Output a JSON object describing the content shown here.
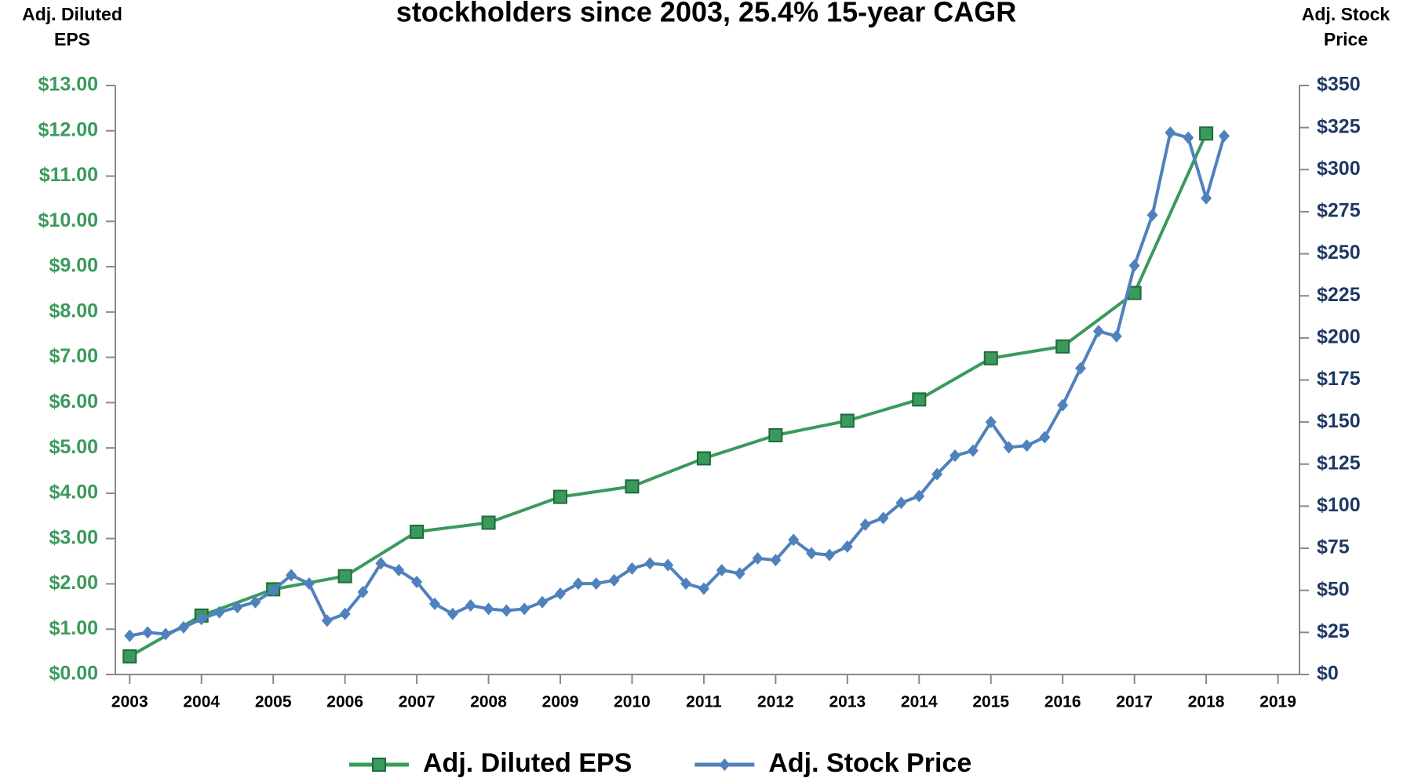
{
  "chart_data": {
    "type": "line",
    "title": "stockholders since 2003, 25.4% 15-year CAGR",
    "ylabel": "Adj. Diluted EPS",
    "y2label": "Adj. Stock Price",
    "xlim": [
      2002.8,
      2019.3
    ],
    "xticks": [
      2003,
      2004,
      2005,
      2006,
      2007,
      2008,
      2009,
      2010,
      2011,
      2012,
      2013,
      2014,
      2015,
      2016,
      2017,
      2018,
      2019
    ],
    "ylim": [
      0,
      13
    ],
    "yticks": [
      {
        "value": 0,
        "label": "$0.00"
      },
      {
        "value": 1,
        "label": "$1.00"
      },
      {
        "value": 2,
        "label": "$2.00"
      },
      {
        "value": 3,
        "label": "$3.00"
      },
      {
        "value": 4,
        "label": "$4.00"
      },
      {
        "value": 5,
        "label": "$5.00"
      },
      {
        "value": 6,
        "label": "$6.00"
      },
      {
        "value": 7,
        "label": "$7.00"
      },
      {
        "value": 8,
        "label": "$8.00"
      },
      {
        "value": 9,
        "label": "$9.00"
      },
      {
        "value": 10,
        "label": "$10.00"
      },
      {
        "value": 11,
        "label": "$11.00"
      },
      {
        "value": 12,
        "label": "$12.00"
      },
      {
        "value": 13,
        "label": "$13.00"
      }
    ],
    "y2lim": [
      0,
      350
    ],
    "y2ticks": [
      {
        "value": 0,
        "label": "$0"
      },
      {
        "value": 25,
        "label": "$25"
      },
      {
        "value": 50,
        "label": "$50"
      },
      {
        "value": 75,
        "label": "$75"
      },
      {
        "value": 100,
        "label": "$100"
      },
      {
        "value": 125,
        "label": "$125"
      },
      {
        "value": 150,
        "label": "$150"
      },
      {
        "value": 175,
        "label": "$175"
      },
      {
        "value": 200,
        "label": "$200"
      },
      {
        "value": 225,
        "label": "$225"
      },
      {
        "value": 250,
        "label": "$250"
      },
      {
        "value": 275,
        "label": "$275"
      },
      {
        "value": 300,
        "label": "$300"
      },
      {
        "value": 325,
        "label": "$325"
      },
      {
        "value": 350,
        "label": "$350"
      }
    ],
    "series": [
      {
        "name": "Adj. Diluted EPS",
        "color": "#3a9a5c",
        "marker": "square",
        "x": [
          2003,
          2004,
          2005,
          2006,
          2007,
          2008,
          2009,
          2010,
          2011,
          2012,
          2013,
          2014,
          2015,
          2016,
          2017,
          2018
        ],
        "values": [
          0.4,
          1.3,
          1.88,
          2.17,
          3.15,
          3.35,
          3.92,
          4.15,
          4.77,
          5.28,
          5.6,
          6.07,
          6.98,
          7.24,
          8.42,
          11.94
        ]
      },
      {
        "name": "Adj. Stock Price",
        "color": "#4f81bd",
        "marker": "diamond",
        "axis": "y2",
        "x": [
          2003,
          2003.25,
          2003.5,
          2003.75,
          2004,
          2004.25,
          2004.5,
          2004.75,
          2005,
          2005.25,
          2005.5,
          2005.75,
          2006,
          2006.25,
          2006.5,
          2006.75,
          2007,
          2007.25,
          2007.5,
          2007.75,
          2008,
          2008.25,
          2008.5,
          2008.75,
          2009,
          2009.25,
          2009.5,
          2009.75,
          2010,
          2010.25,
          2010.5,
          2010.75,
          2011,
          2011.25,
          2011.5,
          2011.75,
          2012,
          2012.25,
          2012.5,
          2012.75,
          2013,
          2013.25,
          2013.5,
          2013.75,
          2014,
          2014.25,
          2014.5,
          2014.75,
          2015,
          2015.25,
          2015.5,
          2015.75,
          2016,
          2016.25,
          2016.5,
          2016.75,
          2017,
          2017.25,
          2017.5,
          2017.75,
          2018,
          2018.25
        ],
        "values": [
          23,
          25,
          24,
          28,
          33,
          37,
          40,
          43,
          50,
          59,
          54,
          32,
          36,
          49,
          66,
          62,
          55,
          42,
          36,
          41,
          39,
          38,
          39,
          43,
          48,
          54,
          54,
          56,
          63,
          66,
          65,
          54,
          51,
          62,
          60,
          69,
          68,
          80,
          72,
          71,
          76,
          89,
          93,
          102,
          106,
          119,
          130,
          133,
          150,
          135,
          136,
          141,
          160,
          182,
          204,
          201,
          243,
          273,
          322,
          319,
          283,
          320
        ]
      }
    ]
  }
}
